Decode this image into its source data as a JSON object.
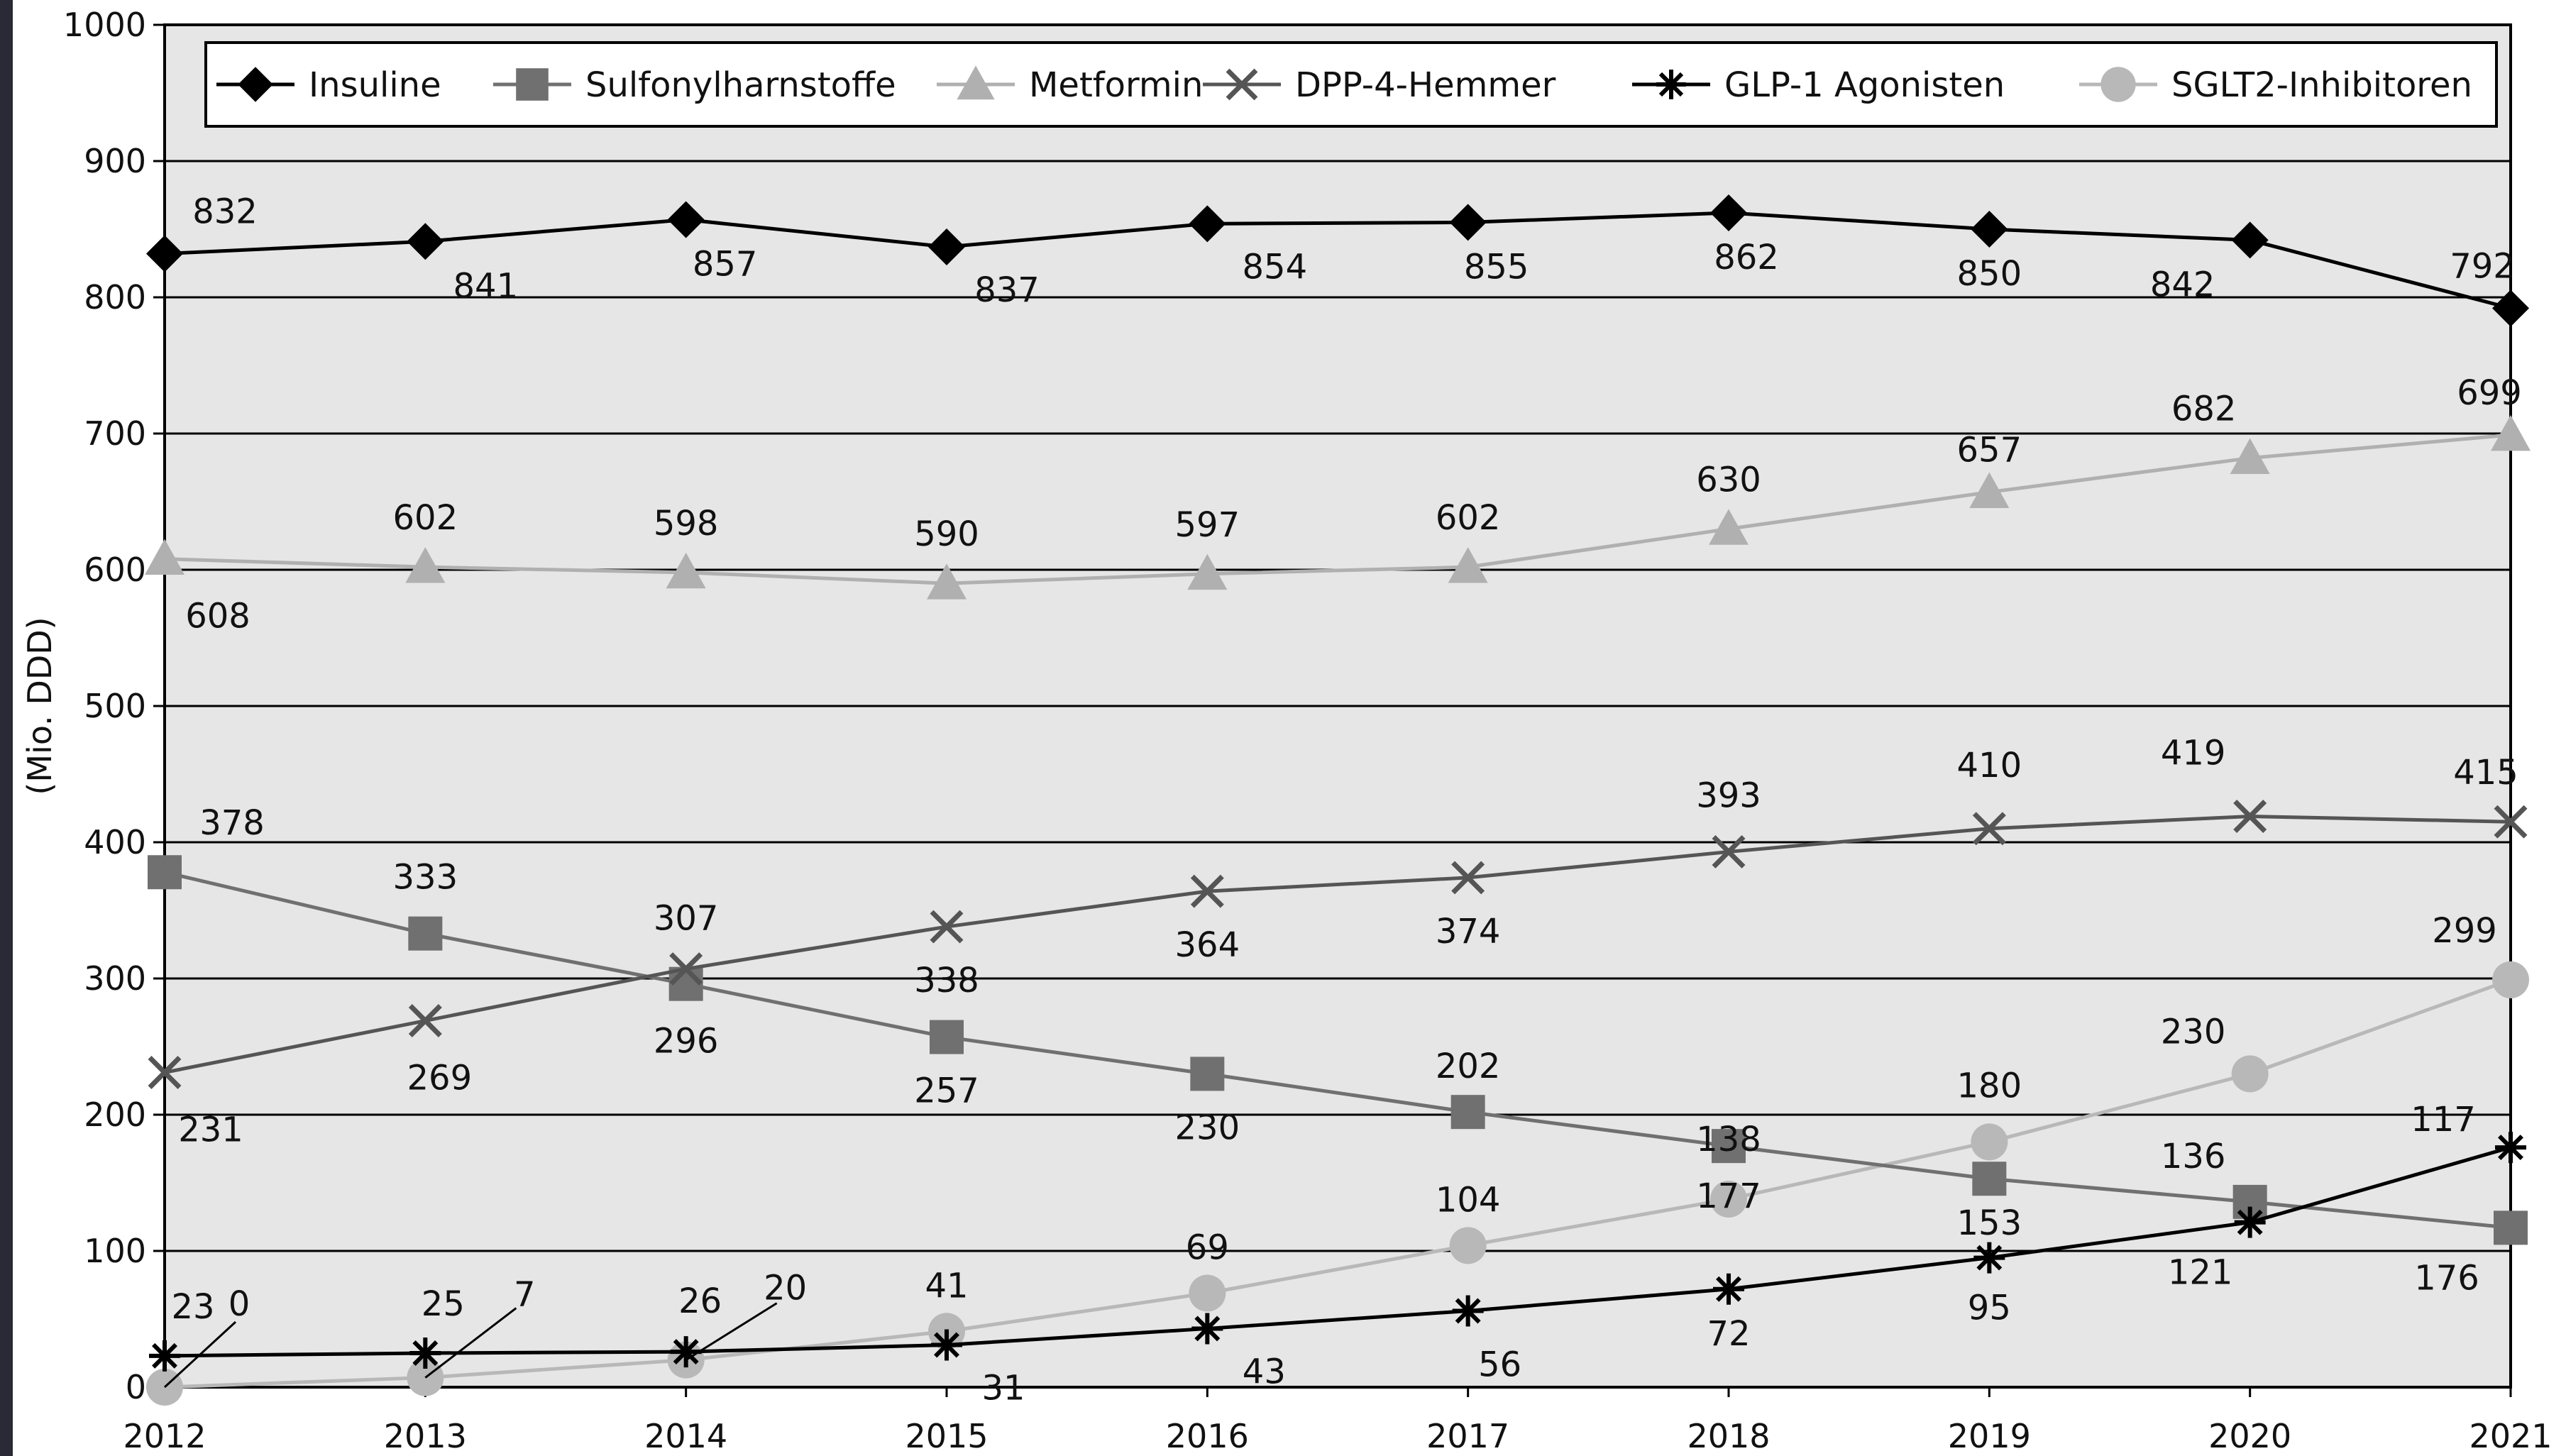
{
  "chart_data": {
    "type": "line",
    "ylabel": "(Mio. DDD)",
    "ylim": [
      0,
      1000
    ],
    "yticks": [
      "0",
      "100",
      "200",
      "300",
      "400",
      "500",
      "600",
      "700",
      "800",
      "900",
      "1000"
    ],
    "x": [
      "2012",
      "2013",
      "2014",
      "2015",
      "2016",
      "2017",
      "2018",
      "2019",
      "2020",
      "2021"
    ],
    "grid": true,
    "legend_position": "top",
    "series": [
      {
        "name": "Insuline",
        "values": [
          832,
          841,
          857,
          837,
          854,
          855,
          862,
          850,
          842,
          792
        ],
        "color": "#000000",
        "marker": "diamond"
      },
      {
        "name": "Sulfonylharnstoffe",
        "values": [
          378,
          333,
          296,
          257,
          230,
          202,
          177,
          153,
          136,
          117
        ],
        "color": "#707070",
        "marker": "square"
      },
      {
        "name": "Metformin",
        "values": [
          608,
          602,
          598,
          590,
          597,
          602,
          630,
          657,
          682,
          699
        ],
        "color": "#b0b0b0",
        "marker": "triangle"
      },
      {
        "name": "DPP-4-Hemmer",
        "values": [
          231,
          269,
          307,
          338,
          364,
          374,
          393,
          410,
          419,
          415
        ],
        "color": "#555555",
        "marker": "x"
      },
      {
        "name": "GLP-1 Agonisten",
        "values": [
          23,
          25,
          26,
          31,
          43,
          56,
          72,
          95,
          121,
          176
        ],
        "color": "#000000",
        "marker": "star"
      },
      {
        "name": "SGLT2-Inhibitoren",
        "values": [
          0,
          7,
          20,
          41,
          69,
          104,
          138,
          180,
          230,
          299
        ],
        "color": "#b8b8b8",
        "marker": "circle"
      }
    ],
    "point_labels": [
      {
        "text": "832",
        "x": "2012",
        "y": 832
      },
      {
        "text": "841",
        "x": "2013",
        "y": 841
      },
      {
        "text": "857",
        "x": "2014",
        "y": 857
      },
      {
        "text": "837",
        "x": "2015",
        "y": 837
      },
      {
        "text": "854",
        "x": "2016",
        "y": 854
      },
      {
        "text": "855",
        "x": "2017",
        "y": 855
      },
      {
        "text": "862",
        "x": "2018",
        "y": 862
      },
      {
        "text": "850",
        "x": "2019",
        "y": 850
      },
      {
        "text": "842",
        "x": "2020",
        "y": 842
      },
      {
        "text": "792",
        "x": "2021",
        "y": 792
      },
      {
        "text": "608",
        "x": "2012",
        "y": 608
      },
      {
        "text": "602",
        "x": "2013",
        "y": 602
      },
      {
        "text": "598",
        "x": "2014",
        "y": 598
      },
      {
        "text": "590",
        "x": "2015",
        "y": 590
      },
      {
        "text": "597",
        "x": "2016",
        "y": 597
      },
      {
        "text": "602",
        "x": "2017",
        "y": 602
      },
      {
        "text": "630",
        "x": "2018",
        "y": 630
      },
      {
        "text": "657",
        "x": "2019",
        "y": 657
      },
      {
        "text": "682",
        "x": "2020",
        "y": 682
      },
      {
        "text": "699",
        "x": "2021",
        "y": 699
      },
      {
        "text": "378",
        "x": "2012",
        "y": 378
      },
      {
        "text": "333",
        "x": "2013",
        "y": 333
      },
      {
        "text": "307",
        "x": "2014",
        "y": 307
      },
      {
        "text": "338",
        "x": "2015",
        "y": 338
      },
      {
        "text": "364",
        "x": "2016",
        "y": 364
      },
      {
        "text": "374",
        "x": "2017",
        "y": 374
      },
      {
        "text": "393",
        "x": "2018",
        "y": 393
      },
      {
        "text": "410",
        "x": "2019",
        "y": 410
      },
      {
        "text": "419",
        "x": "2020",
        "y": 419
      },
      {
        "text": "415",
        "x": "2021",
        "y": 415
      },
      {
        "text": "231",
        "x": "2012",
        "y": 231
      },
      {
        "text": "269",
        "x": "2013",
        "y": 269
      },
      {
        "text": "296",
        "x": "2014",
        "y": 296
      },
      {
        "text": "257",
        "x": "2015",
        "y": 257
      },
      {
        "text": "230",
        "x": "2016",
        "y": 230
      },
      {
        "text": "202",
        "x": "2017",
        "y": 202
      },
      {
        "text": "138",
        "x": "2018",
        "y": 138
      },
      {
        "text": "180",
        "x": "2019",
        "y": 180
      },
      {
        "text": "230",
        "x": "2020",
        "y": 230
      },
      {
        "text": "299",
        "x": "2021",
        "y": 299
      },
      {
        "text": "177",
        "x": "2018",
        "y": 177
      },
      {
        "text": "153",
        "x": "2019",
        "y": 153
      },
      {
        "text": "136",
        "x": "2020",
        "y": 136
      },
      {
        "text": "117",
        "x": "2021",
        "y": 176
      },
      {
        "text": "176",
        "x": "2021",
        "y": 117
      },
      {
        "text": "104",
        "x": "2017",
        "y": 104
      },
      {
        "text": "69",
        "x": "2016",
        "y": 69
      },
      {
        "text": "41",
        "x": "2015",
        "y": 41
      },
      {
        "text": "20",
        "x": "2014",
        "y": 20
      },
      {
        "text": "7",
        "x": "2013",
        "y": 7
      },
      {
        "text": "0",
        "x": "2012",
        "y": 0
      },
      {
        "text": "23",
        "x": "2012",
        "y": 23
      },
      {
        "text": "25",
        "x": "2013",
        "y": 25
      },
      {
        "text": "26",
        "x": "2014",
        "y": 26
      },
      {
        "text": "31",
        "x": "2015",
        "y": 31
      },
      {
        "text": "43",
        "x": "2016",
        "y": 43
      },
      {
        "text": "56",
        "x": "2017",
        "y": 56
      },
      {
        "text": "72",
        "x": "2018",
        "y": 72
      },
      {
        "text": "95",
        "x": "2019",
        "y": 95
      },
      {
        "text": "121",
        "x": "2020",
        "y": 121
      }
    ]
  }
}
